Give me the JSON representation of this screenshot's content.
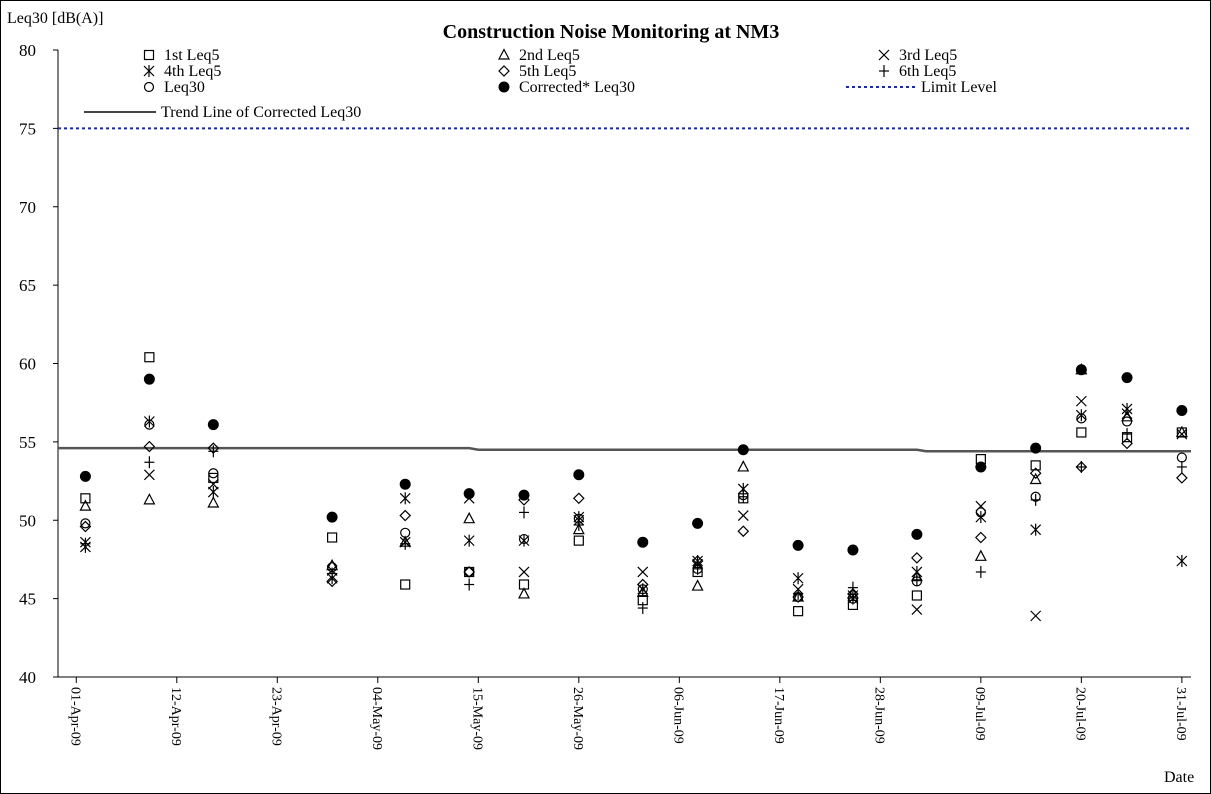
{
  "chart_data": {
    "type": "scatter",
    "title": "Construction Noise Monitoring at NM3",
    "ylabel": "Leq30 [dB(A)]",
    "xlabel": "Date",
    "ylim": [
      40,
      80
    ],
    "yticks": [
      40,
      45,
      50,
      55,
      60,
      65,
      70,
      75,
      80
    ],
    "xlim": [
      "2009-03-30",
      "2009-08-01"
    ],
    "x_tick_dates": [
      "2009-04-01",
      "2009-04-12",
      "2009-04-23",
      "2009-05-04",
      "2009-05-15",
      "2009-05-26",
      "2009-06-06",
      "2009-06-17",
      "2009-06-28",
      "2009-07-09",
      "2009-07-20",
      "2009-07-31"
    ],
    "x_tick_labels": [
      "01-Apr-09",
      "12-Apr-09",
      "23-Apr-09",
      "04-May-09",
      "15-May-09",
      "26-May-09",
      "06-Jun-09",
      "17-Jun-09",
      "28-Jun-09",
      "09-Jul-09",
      "20-Jul-09",
      "31-Jul-09"
    ],
    "grid": false,
    "legend_position": "top",
    "dates": [
      "2009-04-02",
      "2009-04-09",
      "2009-04-16",
      "2009-04-29",
      "2009-05-07",
      "2009-05-14",
      "2009-05-20",
      "2009-05-26",
      "2009-06-02",
      "2009-06-08",
      "2009-06-13",
      "2009-06-19",
      "2009-06-25",
      "2009-07-02",
      "2009-07-09",
      "2009-07-15",
      "2009-07-20",
      "2009-07-25",
      "2009-07-31"
    ],
    "series": [
      {
        "name": "1st Leq5",
        "marker": "square",
        "values": [
          51.4,
          60.4,
          52.7,
          48.9,
          45.9,
          46.7,
          45.9,
          48.7,
          44.9,
          46.7,
          51.4,
          44.2,
          44.6,
          45.2,
          53.9,
          53.5,
          55.6,
          55.3,
          55.6
        ]
      },
      {
        "name": "2nd Leq5",
        "marker": "triangle",
        "values": [
          50.9,
          51.3,
          51.1,
          47.1,
          48.6,
          50.1,
          45.3,
          49.4,
          45.4,
          45.8,
          53.4,
          45.1,
          45.3,
          46.4,
          47.7,
          52.6,
          59.6,
          56.6,
          55.6
        ]
      },
      {
        "name": "3rd Leq5",
        "marker": "x",
        "values": [
          48.6,
          52.9,
          52.3,
          46.8,
          48.6,
          51.4,
          46.7,
          50.0,
          46.7,
          47.2,
          50.3,
          45.6,
          45.2,
          44.3,
          50.9,
          43.9,
          57.6,
          56.8,
          55.5
        ]
      },
      {
        "name": "4th Leq5",
        "marker": "asterisk",
        "values": [
          48.3,
          56.3,
          51.8,
          46.3,
          51.4,
          48.7,
          48.7,
          50.2,
          45.6,
          47.4,
          52.0,
          46.3,
          45.0,
          46.7,
          50.2,
          49.4,
          56.7,
          57.1,
          47.4
        ]
      },
      {
        "name": "5th Leq5",
        "marker": "diamond",
        "values": [
          49.6,
          54.7,
          54.6,
          46.1,
          50.3,
          46.7,
          51.3,
          51.4,
          45.9,
          47.4,
          49.3,
          45.1,
          45.3,
          47.6,
          48.9,
          53.0,
          53.4,
          54.9,
          52.7
        ]
      },
      {
        "name": "6th Leq5",
        "marker": "plus",
        "values": [
          48.5,
          53.7,
          54.4,
          46.6,
          48.5,
          45.9,
          50.5,
          49.7,
          44.4,
          46.9,
          51.5,
          45.3,
          45.7,
          46.2,
          46.7,
          51.3,
          53.4,
          55.5,
          53.4
        ]
      },
      {
        "name": "Leq30",
        "marker": "circle-open",
        "values": [
          49.8,
          56.1,
          53.0,
          47.0,
          49.2,
          46.7,
          48.8,
          50.1,
          45.6,
          46.9,
          51.6,
          45.1,
          45.0,
          46.1,
          50.5,
          51.5,
          56.5,
          56.3,
          54.0
        ]
      },
      {
        "name": "Corrected* Leq30",
        "marker": "circle-filled",
        "values": [
          52.8,
          59.0,
          56.1,
          50.2,
          52.3,
          51.7,
          51.6,
          52.9,
          48.6,
          49.8,
          54.5,
          48.4,
          48.1,
          49.1,
          53.4,
          54.6,
          59.6,
          59.1,
          57.0
        ]
      }
    ],
    "limit_level": {
      "name": "Limit Level",
      "value": 75
    },
    "trend_line": {
      "name": "Trend Line of Corrected Leq30",
      "segments": [
        {
          "from": "2009-03-30",
          "to": "2009-05-14",
          "value": 54.6
        },
        {
          "from": "2009-05-15",
          "to": "2009-07-02",
          "value": 54.5
        },
        {
          "from": "2009-07-03",
          "to": "2009-08-01",
          "value": 54.4
        }
      ]
    }
  }
}
